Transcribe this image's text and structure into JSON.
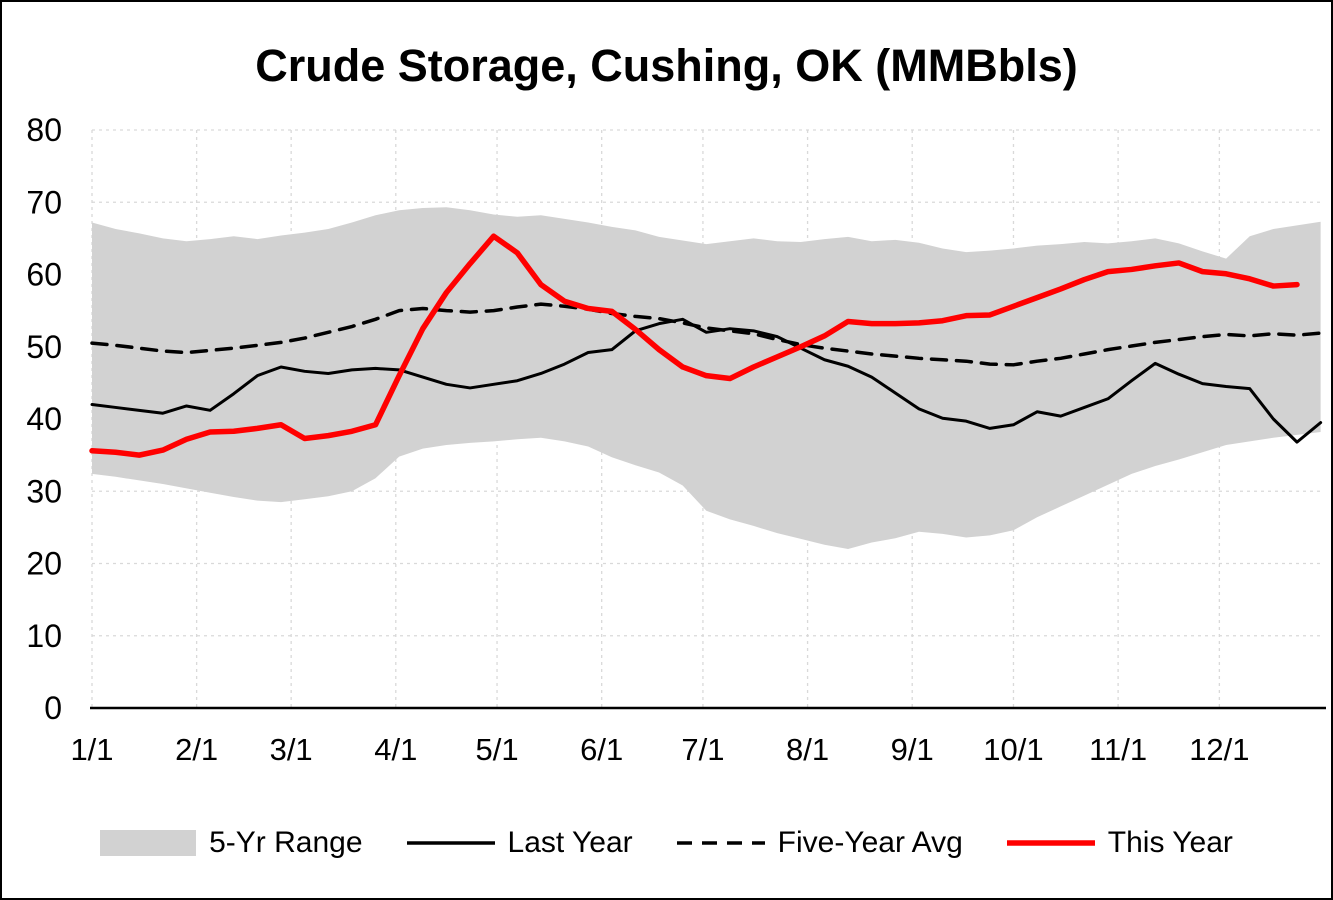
{
  "title": "Crude Storage, Cushing, OK (MMBbls)",
  "colors": {
    "band": "#d2d2d2",
    "last_year": "#000000",
    "five_year_avg": "#000000",
    "this_year": "#ff0000",
    "gridline": "#d9d9d9",
    "axis": "#000000"
  },
  "legend": [
    {
      "label": "5-Yr Range",
      "swatch": "band",
      "color": "#d2d2d2"
    },
    {
      "label": "Last Year",
      "swatch": "solid-line",
      "color": "#000000"
    },
    {
      "label": "Five-Year Avg",
      "swatch": "dashed-line",
      "color": "#000000"
    },
    {
      "label": "This Year",
      "swatch": "thick-line",
      "color": "#ff0000"
    }
  ],
  "chart_data": {
    "type": "line",
    "title": "Crude Storage, Cushing, OK (MMBbls)",
    "ylabel": "",
    "xlabel": "",
    "ylim": [
      0,
      80
    ],
    "y_ticks": [
      0,
      10,
      20,
      30,
      40,
      50,
      60,
      70,
      80
    ],
    "x_unit": "day_of_year",
    "x_max": 365,
    "x_tick_days": [
      0,
      31,
      59,
      90,
      120,
      151,
      181,
      212,
      243,
      273,
      304,
      334
    ],
    "x_tick_labels": [
      "1/1",
      "2/1",
      "3/1",
      "4/1",
      "5/1",
      "6/1",
      "7/1",
      "8/1",
      "9/1",
      "10/1",
      "11/1",
      "12/1"
    ],
    "grid": true,
    "legend_position": "bottom",
    "x_days": [
      0,
      7,
      14,
      21,
      28,
      35,
      42,
      49,
      56,
      63,
      70,
      77,
      84,
      91,
      98,
      105,
      112,
      119,
      126,
      133,
      140,
      147,
      154,
      161,
      168,
      175,
      182,
      189,
      196,
      203,
      210,
      217,
      224,
      231,
      238,
      245,
      252,
      259,
      266,
      273,
      280,
      287,
      294,
      301,
      308,
      315,
      322,
      329,
      336,
      343,
      350,
      357,
      364
    ],
    "band": {
      "name": "5-Yr Range",
      "color": "#d2d2d2",
      "upper": [
        67.2,
        66.3,
        65.7,
        65.0,
        64.6,
        64.9,
        65.3,
        64.9,
        65.4,
        65.8,
        66.3,
        67.2,
        68.2,
        68.9,
        69.2,
        69.3,
        68.9,
        68.3,
        68.0,
        68.2,
        67.7,
        67.2,
        66.6,
        66.1,
        65.2,
        64.7,
        64.2,
        64.6,
        65.0,
        64.6,
        64.5,
        64.9,
        65.2,
        64.6,
        64.8,
        64.4,
        63.6,
        63.1,
        63.3,
        63.6,
        64.0,
        64.2,
        64.5,
        64.3,
        64.6,
        65.0,
        64.3,
        63.2,
        62.2,
        65.3,
        66.3,
        66.8,
        67.3
      ],
      "lower": [
        32.4,
        32.0,
        31.5,
        31.0,
        30.4,
        29.8,
        29.2,
        28.7,
        28.5,
        28.9,
        29.3,
        30.0,
        31.8,
        34.8,
        35.9,
        36.4,
        36.7,
        36.9,
        37.2,
        37.4,
        36.9,
        36.2,
        34.7,
        33.6,
        32.6,
        30.8,
        27.3,
        26.1,
        25.2,
        24.2,
        23.4,
        22.6,
        22.0,
        22.9,
        23.5,
        24.4,
        24.1,
        23.6,
        23.9,
        24.6,
        26.4,
        27.9,
        29.4,
        30.9,
        32.4,
        33.5,
        34.4,
        35.4,
        36.4,
        36.9,
        37.4,
        37.8,
        38.2
      ]
    },
    "series": [
      {
        "name": "Last Year",
        "style": "solid",
        "color": "#000000",
        "width": 3,
        "values": [
          42.0,
          41.6,
          41.2,
          40.8,
          41.8,
          41.2,
          43.5,
          46.0,
          47.2,
          46.6,
          46.3,
          46.8,
          47.0,
          46.8,
          45.8,
          44.8,
          44.3,
          44.8,
          45.3,
          46.3,
          47.6,
          49.2,
          49.6,
          52.2,
          53.2,
          53.8,
          52.0,
          52.5,
          52.2,
          51.4,
          49.8,
          48.2,
          47.3,
          45.8,
          43.6,
          41.4,
          40.1,
          39.7,
          38.7,
          39.2,
          41.0,
          40.4,
          41.6,
          42.8,
          45.3,
          47.7,
          46.2,
          44.9,
          44.5,
          44.2,
          40.0,
          36.8,
          39.5
        ]
      },
      {
        "name": "Five-Year Avg",
        "style": "dashed",
        "color": "#000000",
        "width": 3.5,
        "values": [
          50.5,
          50.2,
          49.8,
          49.4,
          49.2,
          49.5,
          49.8,
          50.2,
          50.6,
          51.2,
          52.0,
          52.8,
          53.8,
          55.0,
          55.3,
          55.0,
          54.8,
          55.0,
          55.5,
          55.9,
          55.6,
          55.2,
          54.6,
          54.2,
          53.9,
          53.3,
          52.6,
          52.2,
          51.8,
          51.0,
          50.3,
          49.8,
          49.4,
          49.0,
          48.7,
          48.4,
          48.2,
          48.0,
          47.6,
          47.5,
          48.0,
          48.4,
          49.0,
          49.6,
          50.1,
          50.6,
          51.0,
          51.4,
          51.7,
          51.5,
          51.8,
          51.6,
          51.9
        ]
      },
      {
        "name": "This Year",
        "style": "solid",
        "color": "#ff0000",
        "width": 5.5,
        "values": [
          35.6,
          35.4,
          35.0,
          35.7,
          37.2,
          38.2,
          38.3,
          38.7,
          39.2,
          37.3,
          37.7,
          38.3,
          39.2,
          46.0,
          52.5,
          57.5,
          61.5,
          65.3,
          63.0,
          58.6,
          56.3,
          55.3,
          54.9,
          52.4,
          49.6,
          47.2,
          46.0,
          45.6,
          47.2,
          48.6,
          50.0,
          51.5,
          53.5,
          53.2,
          53.2,
          53.3,
          53.6,
          54.3,
          54.4,
          55.6,
          56.8,
          58.0,
          59.3,
          60.4,
          60.7,
          61.2,
          61.6,
          60.4,
          60.1,
          59.4,
          58.4,
          58.6,
          null
        ]
      }
    ]
  }
}
